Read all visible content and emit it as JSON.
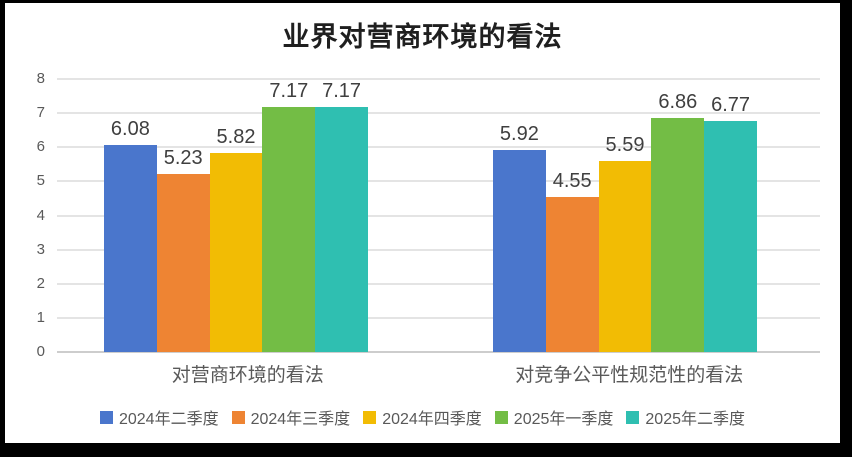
{
  "frame": {
    "border_color": "#000000",
    "background": "#ffffff"
  },
  "chart_data": {
    "type": "bar",
    "title": "业界对营商环境的看法",
    "categories": [
      "对营商环境的看法",
      "对竞争公平性规范性的看法"
    ],
    "series": [
      {
        "name": "2024年二季度",
        "color": "#4a76cc",
        "values": [
          6.08,
          5.92
        ]
      },
      {
        "name": "2024年三季度",
        "color": "#ee8433",
        "values": [
          5.23,
          4.55
        ]
      },
      {
        "name": "2024年四季度",
        "color": "#f2bc04",
        "values": [
          5.82,
          5.59
        ]
      },
      {
        "name": "2025年一季度",
        "color": "#73bd45",
        "values": [
          7.17,
          6.86
        ]
      },
      {
        "name": "2025年二季度",
        "color": "#2fbfb1",
        "values": [
          7.17,
          6.77
        ]
      }
    ],
    "xlabel": "",
    "ylabel": "",
    "ylim": [
      0,
      8
    ],
    "yticks": [
      0,
      1,
      2,
      3,
      4,
      5,
      6,
      7,
      8
    ],
    "grid": true,
    "legend_position": "bottom",
    "data_labels_shown": true,
    "colors": {
      "gridline": "#e4e4e4",
      "axis_line": "#cdcdcd",
      "tick_text": "#595959",
      "data_label_text": "#3f3f3f",
      "title_text": "#1f1f1f"
    }
  }
}
